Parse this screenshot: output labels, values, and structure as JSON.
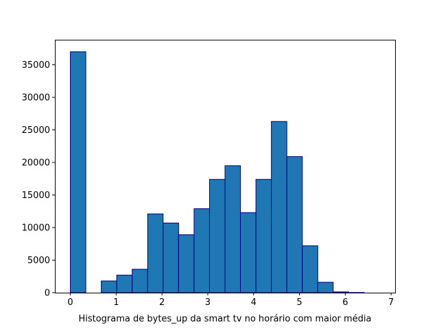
{
  "chart_data": {
    "type": "bar",
    "title": "",
    "xlabel": "Histograma de bytes_up da smart tv no horário com maior média",
    "ylabel": "",
    "bin_edges": [
      0,
      0.3375,
      0.675,
      1.0125,
      1.35,
      1.6875,
      2.025,
      2.3625,
      2.7,
      3.0375,
      3.375,
      3.7125,
      4.05,
      4.3875,
      4.725,
      5.0625,
      5.4,
      5.7375,
      6.075,
      6.4125,
      6.75
    ],
    "values": [
      37000,
      0,
      1800,
      2700,
      3600,
      12100,
      10700,
      8900,
      12900,
      17400,
      19500,
      12300,
      17400,
      26300,
      20900,
      7200,
      1600,
      120,
      30,
      0
    ],
    "xlim": [
      -0.3375,
      7.0875
    ],
    "ylim": [
      0,
      38850
    ],
    "x_ticks": [
      0,
      1,
      2,
      3,
      4,
      5,
      6,
      7
    ],
    "y_ticks": [
      0,
      5000,
      10000,
      15000,
      20000,
      25000,
      30000,
      35000
    ],
    "bar_fill": "#1f77b4",
    "bar_edge": "#000080",
    "grid": false,
    "legend": "none"
  }
}
